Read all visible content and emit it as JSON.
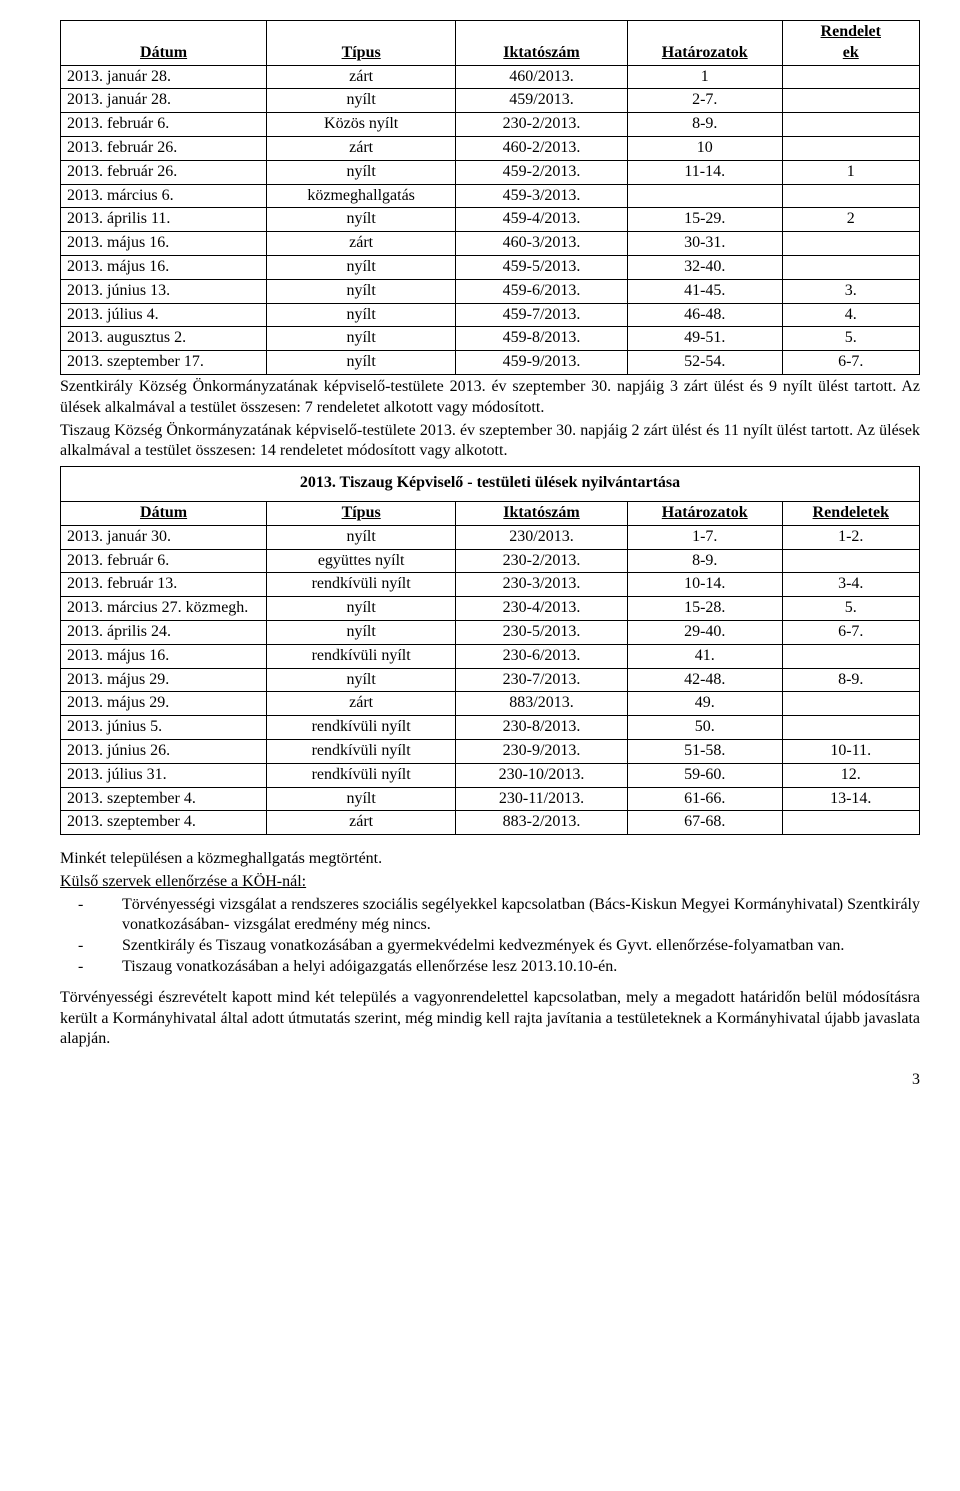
{
  "table1": {
    "headers": [
      "Dátum",
      "Típus",
      "Iktatószám",
      "Határozatok",
      "Rendeletek"
    ],
    "header_split_last": [
      "Rendelet",
      "ek"
    ],
    "rows": [
      [
        "2013. január 28.",
        "zárt",
        "460/2013.",
        "1",
        ""
      ],
      [
        "2013. január 28.",
        "nyílt",
        "459/2013.",
        "2-7.",
        ""
      ],
      [
        "2013. február 6.",
        "Közös nyílt",
        "230-2/2013.",
        "8-9.",
        ""
      ],
      [
        "2013. február 26.",
        "zárt",
        "460-2/2013.",
        "10",
        ""
      ],
      [
        "2013. február 26.",
        "nyílt",
        "459-2/2013.",
        "11-14.",
        "1"
      ],
      [
        "2013. március 6.",
        "közmeghallgatás",
        "459-3/2013.",
        "",
        ""
      ],
      [
        "2013. április 11.",
        "nyílt",
        "459-4/2013.",
        "15-29.",
        "2"
      ],
      [
        "2013. május 16.",
        "zárt",
        "460-3/2013.",
        "30-31.",
        ""
      ],
      [
        "2013. május 16.",
        "nyílt",
        "459-5/2013.",
        "32-40.",
        ""
      ],
      [
        "2013. június 13.",
        "nyílt",
        "459-6/2013.",
        "41-45.",
        "3."
      ],
      [
        "2013. július 4.",
        "nyílt",
        "459-7/2013.",
        "46-48.",
        "4."
      ],
      [
        "2013. augusztus 2.",
        "nyílt",
        "459-8/2013.",
        "49-51.",
        "5."
      ],
      [
        "2013. szeptember 17.",
        "nyílt",
        "459-9/2013.",
        "52-54.",
        "6-7."
      ]
    ]
  },
  "para1": "Szentkirály Község Önkormányzatának képviselő-testülete 2013. év szeptember 30. napjáig 3 zárt ülést és 9 nyílt ülést tartott. Az ülések alkalmával a testület összesen: 7 rendeletet alkotott vagy módosított.",
  "para2": "Tiszaug Község Önkormányzatának képviselő-testülete 2013. év szeptember 30. napjáig 2 zárt ülést és 11 nyílt ülést tartott. Az ülések alkalmával a testület összesen: 14 rendeletet módosított vagy alkotott.",
  "table2": {
    "title": "2013. Tiszaug  Képviselő - testületi ülések nyilvántartása",
    "headers": [
      "Dátum",
      "Típus",
      "Iktatószám",
      "Határozatok",
      "Rendeletek"
    ],
    "rows": [
      [
        "2013. január 30.",
        "nyílt",
        "230/2013.",
        "1-7.",
        "1-2."
      ],
      [
        "2013. február 6.",
        "együttes nyílt",
        "230-2/2013.",
        "8-9.",
        ""
      ],
      [
        "2013. február 13.",
        "rendkívüli nyílt",
        "230-3/2013.",
        "10-14.",
        "3-4."
      ],
      [
        "2013. március 27. közmegh.",
        "nyílt",
        "230-4/2013.",
        "15-28.",
        "5."
      ],
      [
        "2013. április 24.",
        "nyílt",
        "230-5/2013.",
        "29-40.",
        "6-7."
      ],
      [
        "2013. május 16.",
        "rendkívüli nyílt",
        "230-6/2013.",
        "41.",
        ""
      ],
      [
        "2013. május 29.",
        "nyílt",
        "230-7/2013.",
        "42-48.",
        "8-9."
      ],
      [
        "2013. május 29.",
        "zárt",
        "883/2013.",
        "49.",
        ""
      ],
      [
        "2013. június 5.",
        "rendkívüli nyílt",
        "230-8/2013.",
        "50.",
        ""
      ],
      [
        "2013. június 26.",
        "rendkívüli nyílt",
        "230-9/2013.",
        "51-58.",
        "10-11."
      ],
      [
        "2013. július 31.",
        "rendkívüli nyílt",
        "230-10/2013.",
        "59-60.",
        "12."
      ],
      [
        "2013. szeptember 4.",
        "nyílt",
        "230-11/2013.",
        "61-66.",
        "13-14."
      ],
      [
        "2013. szeptember 4.",
        "zárt",
        "883-2/2013.",
        "67-68.",
        ""
      ]
    ]
  },
  "para3": "Minkét településen a közmeghallgatás megtörtént.",
  "subhead1": "Külső szervek ellenőrzése a KÖH-nál:",
  "bullets": [
    "Törvényességi vizsgálat a rendszeres szociális segélyekkel kapcsolatban (Bács-Kiskun Megyei Kormányhivatal) Szentkirály vonatkozásában- vizsgálat eredmény még nincs.",
    "Szentkirály és Tiszaug vonatkozásában a gyermekvédelmi kedvezmények és Gyvt. ellenőrzése-folyamatban van.",
    "Tiszaug vonatkozásában a helyi adóigazgatás ellenőrzése lesz 2013.10.10-én."
  ],
  "para4": "Törvényességi észrevételt kapott mind két település a vagyonrendelettel kapcsolatban, mely a megadott határidőn belül módosításra került a Kormányhivatal által adott útmutatás szerint, még mindig kell rajta javítania a testületeknek a Kormányhivatal újabb javaslata alapján.",
  "pagenum": "3"
}
